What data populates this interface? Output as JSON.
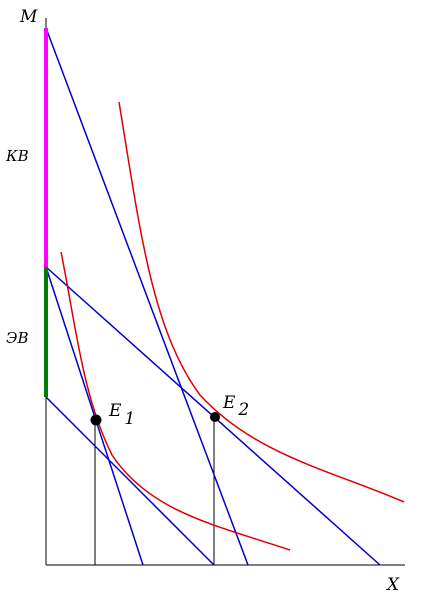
{
  "axes": {
    "y_label": "M",
    "x_label": "X"
  },
  "segments": {
    "upper_label": "КВ",
    "lower_label": "ЭВ",
    "upper_color": "#ff00ff",
    "lower_color": "#008000"
  },
  "points": {
    "e1": {
      "main": "E",
      "sub": "1"
    },
    "e2": {
      "main": "E",
      "sub": "2"
    }
  },
  "colors": {
    "budget_lines": "#0000cc",
    "indifference_curves": "#dd0000",
    "axes": "#000000"
  }
}
